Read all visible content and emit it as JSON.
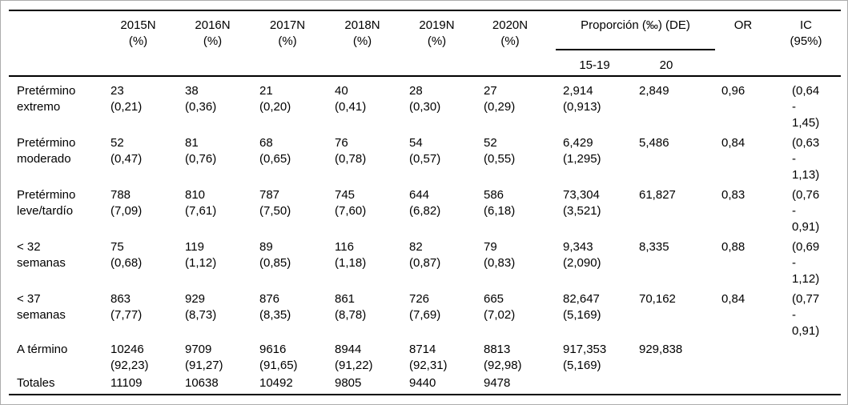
{
  "colors": {
    "background": "#ffffff",
    "text": "#000000",
    "rules": "#000000",
    "frame_border": "#adadad"
  },
  "table": {
    "header": {
      "years": [
        "2015N\n(%)",
        "2016N\n(%)",
        "2017N\n(%)",
        "2018N\n(%)",
        "2019N\n(%)",
        "2020N\n(%)"
      ],
      "proportion_group": "Proporción (‰) (DE)",
      "proportion_subcolumns": [
        "15-19",
        "20"
      ],
      "or": "OR",
      "ic": "IC\n(95%)"
    },
    "rows": [
      {
        "label": "Pretérmino\nextremo",
        "years": [
          "23\n(0,21)",
          "38\n(0,36)",
          "21\n(0,20)",
          "40\n(0,41)",
          "28\n(0,30)",
          "27\n(0,29)"
        ],
        "prop_15_19": "2,914\n(0,913)",
        "prop_20": "2,849",
        "or": "0,96",
        "ic": "(0,64\n-\n1,45)"
      },
      {
        "label": "Pretérmino\nmoderado",
        "years": [
          "52\n(0,47)",
          "81\n(0,76)",
          "68\n(0,65)",
          "76\n(0,78)",
          "54\n(0,57)",
          "52\n(0,55)"
        ],
        "prop_15_19": "6,429\n(1,295)",
        "prop_20": "5,486",
        "or": "0,84",
        "ic": "(0,63\n-\n1,13)"
      },
      {
        "label": "Pretérmino\nleve/tardío",
        "years": [
          "788\n(7,09)",
          "810\n(7,61)",
          "787\n(7,50)",
          "745\n(7,60)",
          "644\n(6,82)",
          "586\n(6,18)"
        ],
        "prop_15_19": "73,304\n(3,521)",
        "prop_20": "61,827",
        "or": "0,83",
        "ic": "(0,76\n-\n0,91)"
      },
      {
        "label": "< 32\nsemanas",
        "years": [
          "75\n(0,68)",
          "119\n(1,12)",
          "89\n(0,85)",
          "116\n(1,18)",
          "82\n(0,87)",
          "79\n(0,83)"
        ],
        "prop_15_19": "9,343\n(2,090)",
        "prop_20": "8,335",
        "or": "0,88",
        "ic": "(0,69\n-\n1,12)"
      },
      {
        "label": "< 37\nsemanas",
        "years": [
          "863\n(7,77)",
          "929\n(8,73)",
          "876\n(8,35)",
          "861\n(8,78)",
          "726\n(7,69)",
          "665\n(7,02)"
        ],
        "prop_15_19": "82,647\n(5,169)",
        "prop_20": "70,162",
        "or": "0,84",
        "ic": "(0,77\n-\n0,91)"
      },
      {
        "label": "A término",
        "years": [
          "10246\n(92,23)",
          "9709\n(91,27)",
          "9616\n(91,65)",
          "8944\n(91,22)",
          "8714\n(92,31)",
          "8813\n(92,98)"
        ],
        "prop_15_19": "917,353\n(5,169)",
        "prop_20": "929,838",
        "or": "",
        "ic": ""
      },
      {
        "label": "Totales",
        "years": [
          "11109",
          "10638",
          "10492",
          "9805",
          "9440",
          "9478"
        ],
        "prop_15_19": "",
        "prop_20": "",
        "or": "",
        "ic": ""
      }
    ]
  }
}
